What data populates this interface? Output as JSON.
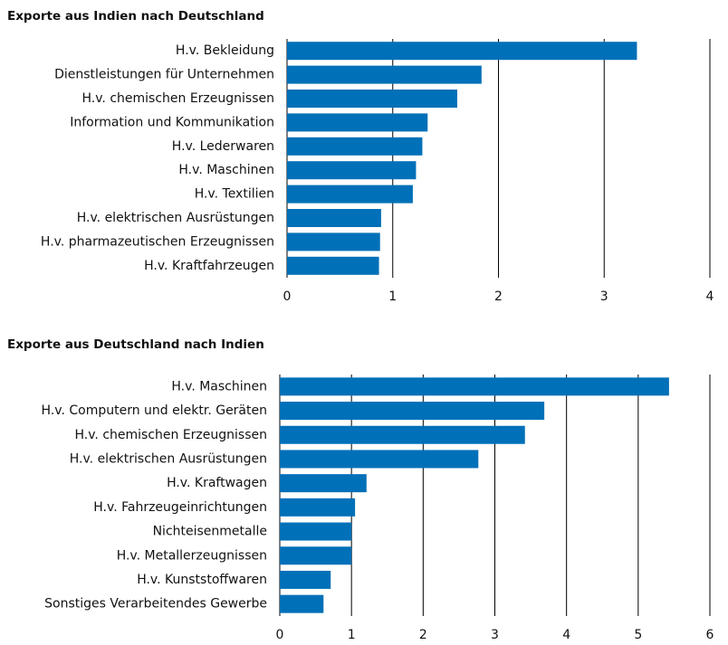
{
  "chart_data": [
    {
      "type": "bar",
      "orientation": "horizontal",
      "title": "Exporte aus Indien nach Deutschland",
      "categories": [
        "H.v. Bekleidung",
        "Dienstleistungen für Unternehmen",
        "H.v. chemischen Erzeugnissen",
        "Information und Kommunikation",
        "H.v. Lederwaren",
        "H.v. Maschinen",
        "H.v. Textilien",
        "H.v. elektrischen Ausrüstungen",
        "H.v. pharmazeutischen Erzeugnissen",
        "H.v. Kraftfahrzeugen"
      ],
      "values": [
        3.31,
        1.84,
        1.61,
        1.33,
        1.28,
        1.22,
        1.19,
        0.89,
        0.88,
        0.87
      ],
      "color": "#0070b8",
      "xlim": [
        0,
        4
      ],
      "xticks": [
        0,
        1,
        2,
        3,
        4
      ],
      "grid": true
    },
    {
      "type": "bar",
      "orientation": "horizontal",
      "title": "Exporte aus Deutschland nach Indien",
      "categories": [
        "H.v. Maschinen",
        "H.v. Computern und elektr. Geräten",
        "H.v. chemischen Erzeugnissen",
        "H.v. elektrischen Ausrüstungen",
        "H.v. Kraftwagen",
        "H.v. Fahrzeugeinrichtungen",
        "Nichteisenmetalle",
        "H.v. Metallerzeugnissen",
        "H.v. Kunststoffwaren",
        "Sonstiges Verarbeitendes Gewerbe"
      ],
      "values": [
        5.43,
        3.69,
        3.42,
        2.77,
        1.21,
        1.05,
        1.0,
        1.0,
        0.71,
        0.61
      ],
      "color": "#0070b8",
      "xlim": [
        0,
        6
      ],
      "xticks": [
        0,
        1,
        2,
        3,
        4,
        5,
        6
      ],
      "grid": true
    }
  ]
}
